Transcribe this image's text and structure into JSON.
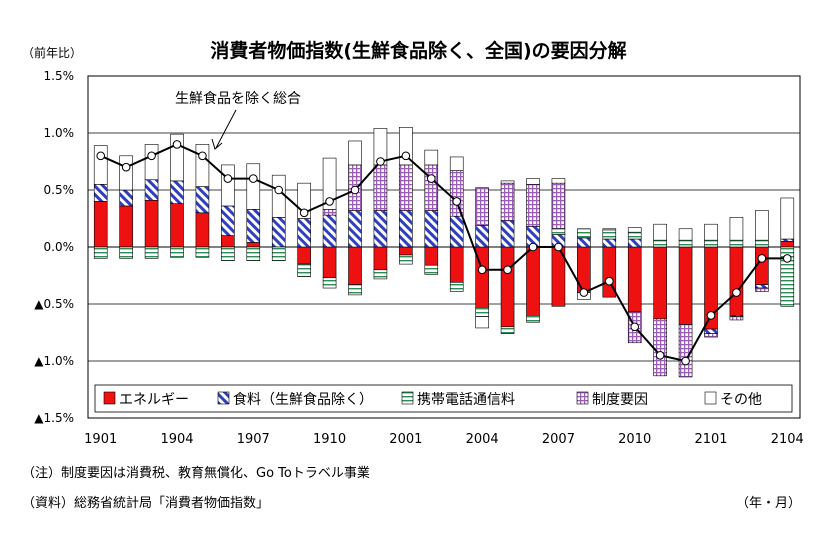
{
  "title": "消費者物価指数(生鮮食品除く、全国)の要因分解",
  "y_unit_label": "（前年比）",
  "x_unit_label": "（年・月）",
  "note": "（注）制度要因は消費税、教育無償化、Go Toトラベル事業",
  "source": "（資料）総務省統計局「消費者物価指数」",
  "annotation": "生鮮食品を除く総合",
  "colors": {
    "energy": "#ee1111",
    "food": "#2f3fbf",
    "mobile": "#2e8b57",
    "policy": "#9a5fb5",
    "other": "#ffffff"
  },
  "chart_data": {
    "type": "bar",
    "stacked": true,
    "ylim": [
      -1.5,
      1.5
    ],
    "ytick_values": [
      1.5,
      1.0,
      0.5,
      0.0,
      -0.5,
      -1.0,
      -1.5
    ],
    "ytick_labels": [
      "1.5%",
      "1.0%",
      "0.5%",
      "0.0%",
      "▲0.5%",
      "▲1.0%",
      "▲1.5%"
    ],
    "xtick_labels": [
      "1901",
      "1904",
      "1907",
      "1910",
      "2001",
      "2004",
      "2007",
      "2010",
      "2101",
      "2104"
    ],
    "xtick_every": 3,
    "categories": [
      "1901",
      "1902",
      "1903",
      "1904",
      "1905",
      "1906",
      "1907",
      "1908",
      "1909",
      "1910",
      "1911",
      "1912",
      "2001",
      "2002",
      "2003",
      "2004",
      "2005",
      "2006",
      "2007",
      "2008",
      "2009",
      "2010",
      "2011",
      "2012",
      "2101",
      "2102",
      "2103",
      "2104"
    ],
    "series": [
      {
        "name": "エネルギー",
        "key": "energy",
        "values": [
          0.4,
          0.36,
          0.41,
          0.38,
          0.3,
          0.1,
          0.04,
          0.0,
          -0.15,
          -0.27,
          -0.33,
          -0.2,
          -0.07,
          -0.16,
          -0.31,
          -0.53,
          -0.7,
          -0.6,
          -0.52,
          -0.4,
          -0.44,
          -0.57,
          -0.63,
          -0.68,
          -0.72,
          -0.6,
          -0.33,
          0.05
        ]
      },
      {
        "name": "食料（生鮮食品除く）",
        "key": "food",
        "values": [
          0.15,
          0.14,
          0.18,
          0.2,
          0.23,
          0.26,
          0.29,
          0.26,
          0.25,
          0.28,
          0.32,
          0.32,
          0.32,
          0.32,
          0.27,
          0.19,
          0.23,
          0.18,
          0.11,
          0.08,
          0.07,
          0.07,
          0.0,
          0.0,
          -0.04,
          -0.01,
          -0.03,
          0.02
        ]
      },
      {
        "name": "携帯電話通信料",
        "key": "mobile",
        "values": [
          -0.1,
          -0.1,
          -0.1,
          -0.09,
          -0.09,
          -0.12,
          -0.12,
          -0.12,
          -0.11,
          -0.09,
          -0.09,
          -0.08,
          -0.08,
          -0.08,
          -0.08,
          -0.08,
          -0.06,
          -0.06,
          0.05,
          0.08,
          0.08,
          0.06,
          0.06,
          0.06,
          0.06,
          0.06,
          0.06,
          -0.52
        ]
      },
      {
        "name": "制度要因",
        "key": "policy",
        "values": [
          0,
          0,
          0,
          0,
          0,
          0,
          0,
          0,
          0,
          0.05,
          0.4,
          0.4,
          0.4,
          0.4,
          0.4,
          0.33,
          0.33,
          0.37,
          0.4,
          0,
          0,
          -0.27,
          -0.5,
          -0.46,
          -0.03,
          -0.03,
          -0.03,
          0
        ]
      },
      {
        "name": "その他",
        "key": "other",
        "values": [
          0.34,
          0.3,
          0.31,
          0.41,
          0.37,
          0.36,
          0.4,
          0.37,
          0.31,
          0.45,
          0.21,
          0.32,
          0.33,
          0.13,
          0.12,
          -0.1,
          0.02,
          0.05,
          0.04,
          -0.06,
          0.01,
          0.04,
          0.14,
          0.1,
          0.14,
          0.2,
          0.26,
          0.36
        ]
      }
    ],
    "line": {
      "name": "生鮮食品を除く総合",
      "values": [
        0.8,
        0.7,
        0.8,
        0.9,
        0.8,
        0.6,
        0.6,
        0.5,
        0.3,
        0.4,
        0.5,
        0.75,
        0.8,
        0.6,
        0.4,
        -0.2,
        -0.2,
        0,
        0,
        -0.4,
        -0.3,
        -0.7,
        -0.95,
        -1.0,
        -0.6,
        -0.4,
        -0.1,
        -0.1
      ]
    }
  }
}
